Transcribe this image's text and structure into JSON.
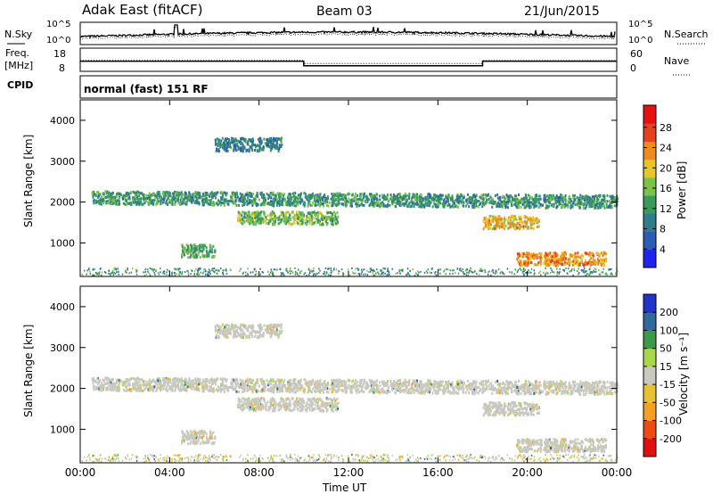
{
  "header": {
    "station": "Adak East (fitACF)",
    "beam": "Beam 03",
    "date": "21/Jun/2015"
  },
  "noise_panel": {
    "left_label": "N.Sky",
    "right_label": "N.Search",
    "left_ticks": [
      "10^5",
      "10^0"
    ],
    "right_ticks": [
      "10^5",
      "10^0"
    ]
  },
  "freq_panel": {
    "left_label": "Freq.",
    "left_units": "[MHz]",
    "right_label": "Nave",
    "left_ticks": [
      "18",
      "8"
    ],
    "right_ticks": [
      "60",
      "0"
    ],
    "series": [
      {
        "name": "Freq.",
        "x": [
          0,
          10,
          10,
          18,
          18,
          24
        ],
        "y": [
          12.4,
          12.4,
          10.4,
          10.4,
          12.4,
          12.4
        ]
      },
      {
        "name": "Nave",
        "x": [
          0,
          10,
          10,
          18,
          18,
          24
        ],
        "y": [
          28,
          28,
          20,
          20,
          28,
          28
        ]
      }
    ]
  },
  "cpid": {
    "label": "CPID",
    "mode": "normal (fast) 151 RF"
  },
  "power_panel": {
    "ylabel": "Slant Range [km]",
    "yticks": [
      "4000",
      "3000",
      "2000",
      "1000"
    ],
    "colorbar_label": "Power [dB]",
    "colorbar_ticks": [
      "28",
      "24",
      "20",
      "16",
      "12",
      "8",
      "4"
    ]
  },
  "velocity_panel": {
    "ylabel": "Slant Range [km]",
    "yticks": [
      "4000",
      "3000",
      "2000",
      "1000"
    ],
    "colorbar_label": "Velocity [m s⁻¹]",
    "colorbar_ticks": [
      "200",
      "100",
      "50",
      "15",
      "-15",
      "-50",
      "-100",
      "-200"
    ]
  },
  "xaxis": {
    "label": "Time UT",
    "ticks": [
      "00:00",
      "04:00",
      "08:00",
      "12:00",
      "16:00",
      "20:00",
      "00:00"
    ]
  },
  "colors": {
    "power_scale": [
      "#2222ee",
      "#2b5bb5",
      "#2f7d8a",
      "#3a9a5a",
      "#7ac24a",
      "#e7c62a",
      "#ef8a1e",
      "#e8401c",
      "#e61010"
    ],
    "velocity_scale": [
      "#e01010",
      "#ef4a12",
      "#f5a020",
      "#e8c030",
      "#c8c8c0",
      "#a8d848",
      "#3a9a48",
      "#2f6a9a",
      "#2233cc"
    ],
    "ground_scatter": "#c8c8c0"
  },
  "chart_data": [
    {
      "type": "heatmap",
      "title": "Power",
      "x_range_hours": [
        0,
        24
      ],
      "y_range_km": [
        180,
        4500
      ],
      "color_range_dB": [
        0,
        30
      ],
      "features": [
        {
          "x_hours": [
            0.5,
            24.0
          ],
          "y_km_start": 2100,
          "y_km_end": 2000,
          "typical_dB": 10
        },
        {
          "x_hours": [
            7.0,
            11.5
          ],
          "y_km": 1600,
          "typical_dB": 14
        },
        {
          "x_hours": [
            18.0,
            20.5
          ],
          "y_km": 1500,
          "typical_dB": 20
        },
        {
          "x_hours": [
            19.5,
            23.5
          ],
          "y_km": 600,
          "typical_dB": 22
        },
        {
          "x_hours": [
            4.5,
            6.0
          ],
          "y_km": 800,
          "typical_dB": 12
        },
        {
          "x_hours": [
            6.0,
            9.0
          ],
          "y_km": 3400,
          "typical_dB": 8
        }
      ]
    },
    {
      "type": "heatmap",
      "title": "Velocity",
      "x_range_hours": [
        0,
        24
      ],
      "y_range_km": [
        180,
        4500
      ],
      "color_range_ms": [
        -250,
        250
      ],
      "note_values": {
        "ground_scatter_band_km": 2000,
        "ground_scatter_late_km": 500
      }
    }
  ]
}
